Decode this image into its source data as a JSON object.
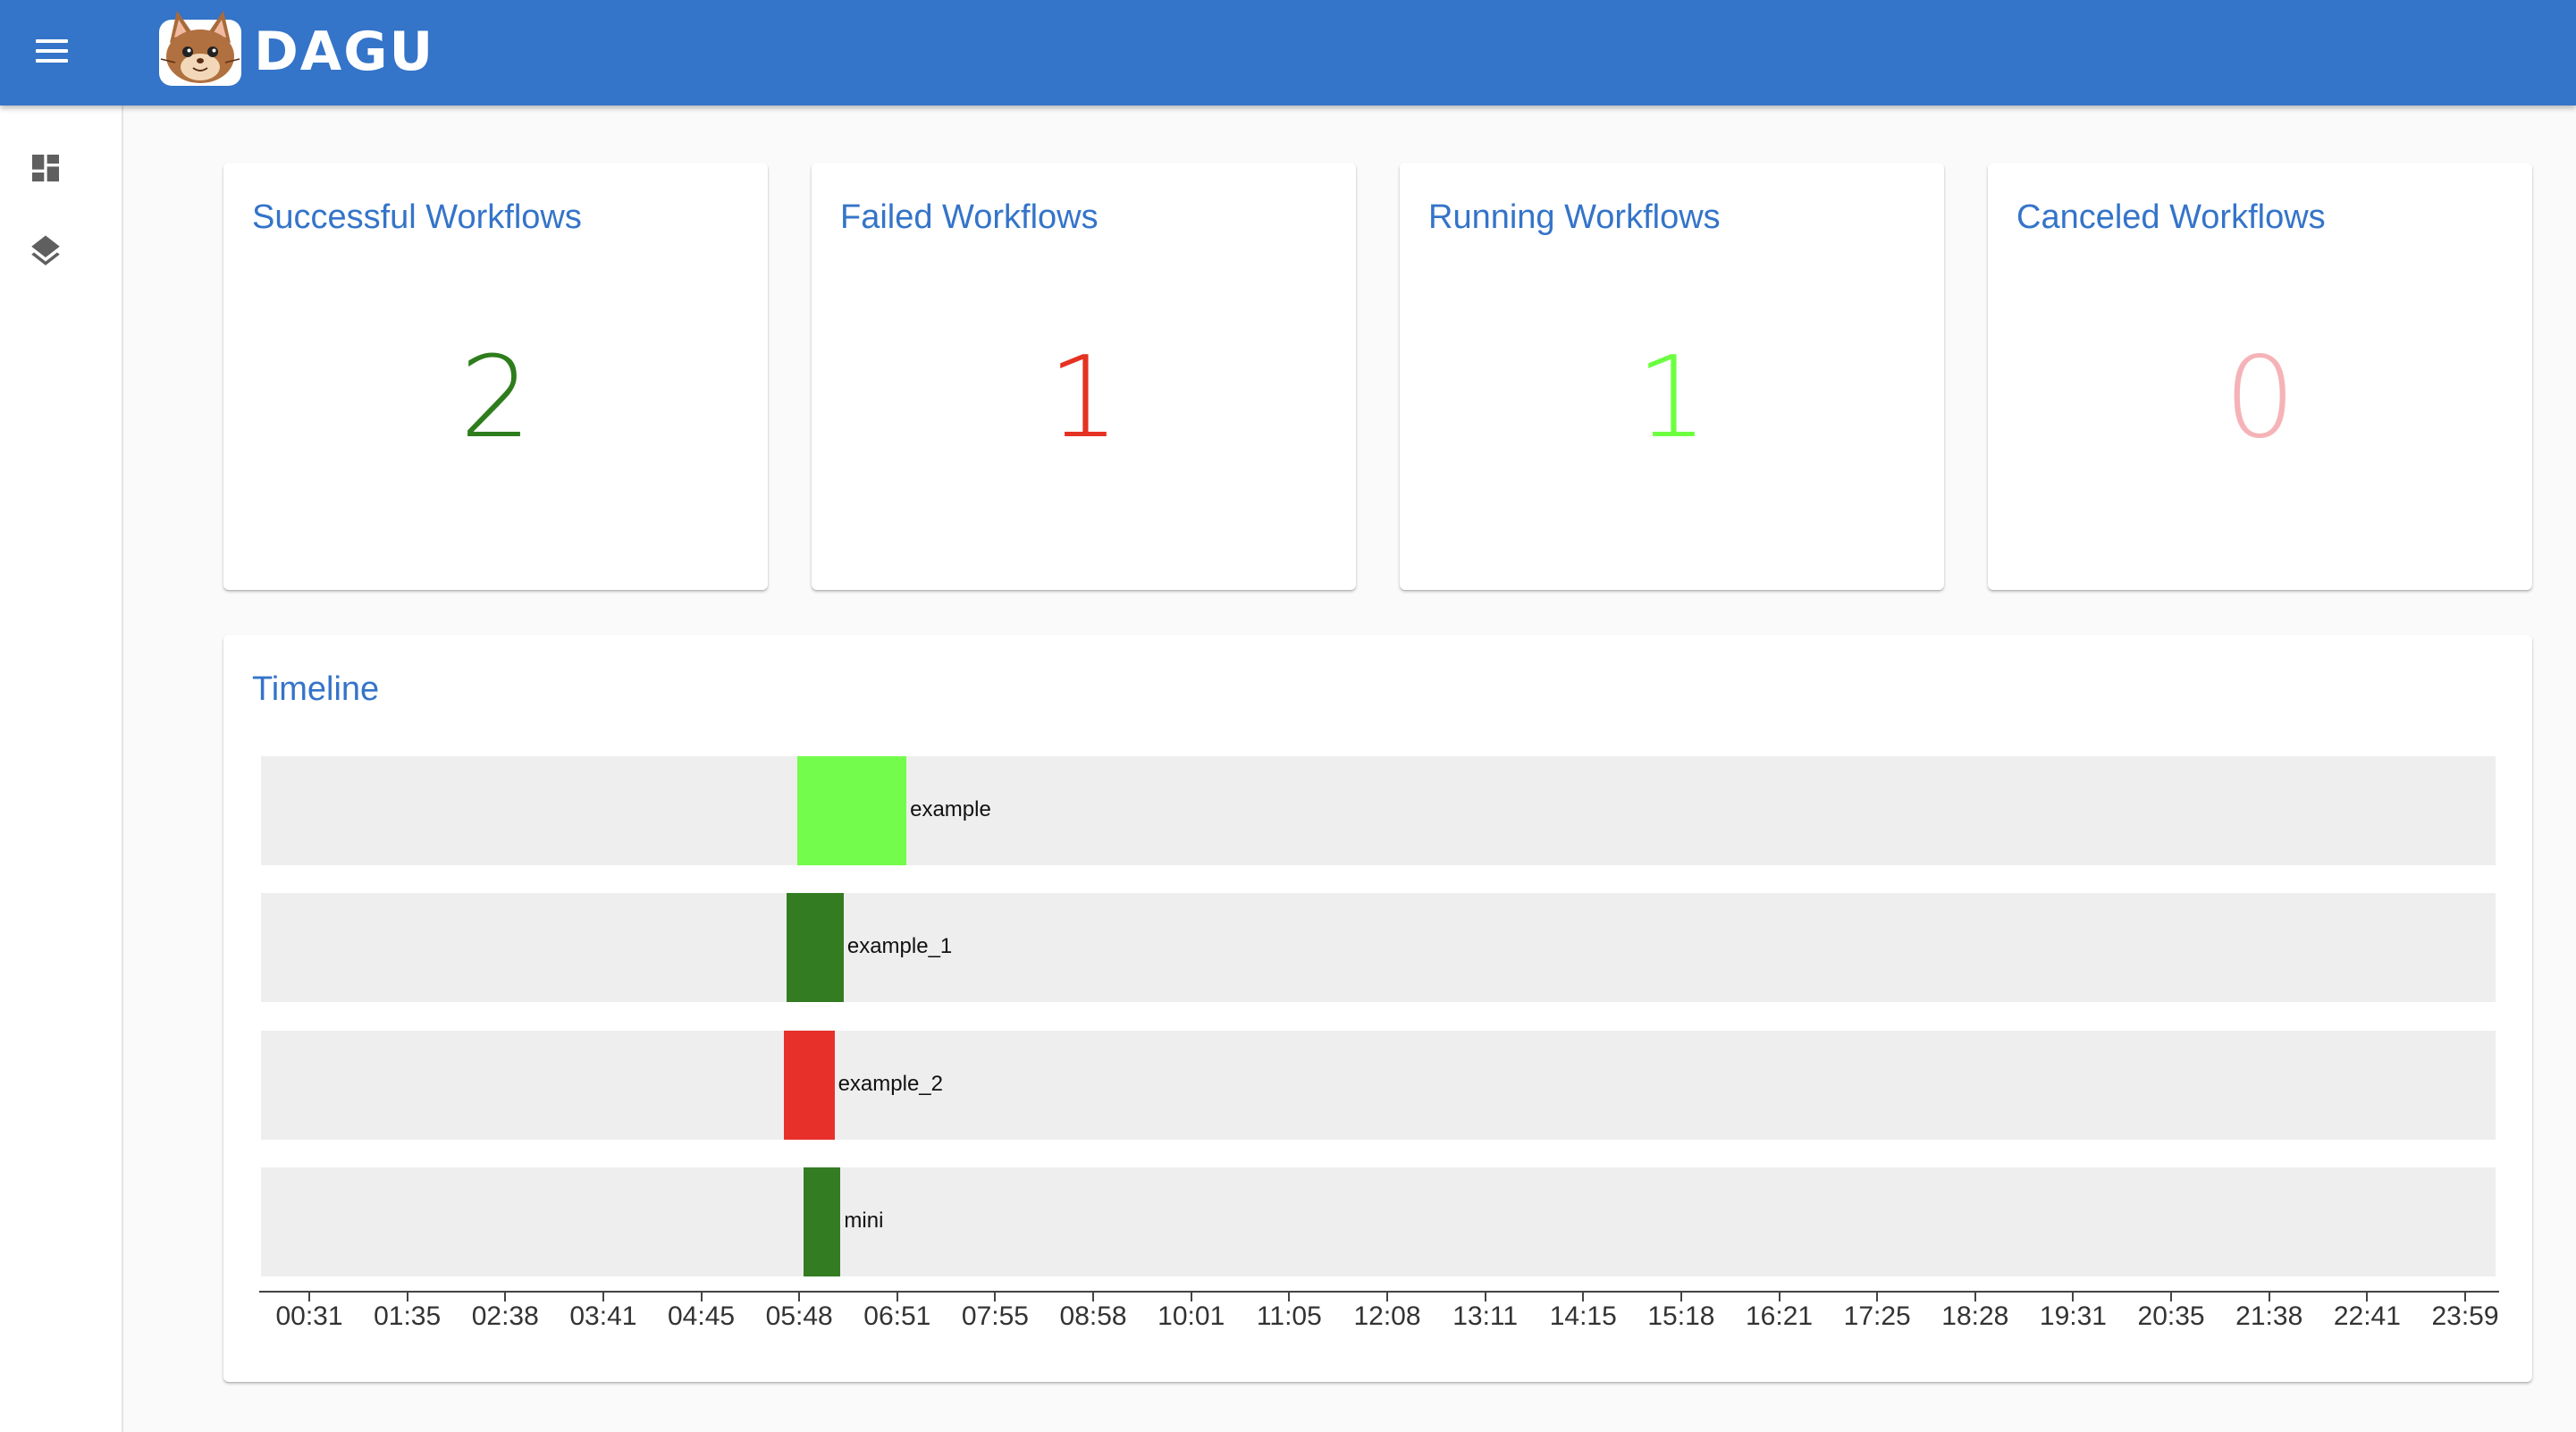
{
  "appbar": {
    "brand": "DAGU",
    "logo_icon": "dagu-cat-logo-icon",
    "menu_icon": "hamburger-menu-icon",
    "color": "#3474c9"
  },
  "sidebar": {
    "items": [
      {
        "icon": "dashboard-icon"
      },
      {
        "icon": "layers-icon"
      }
    ]
  },
  "cards": [
    {
      "title": "Successful Workflows",
      "count": "2",
      "color": "#2e7d1c"
    },
    {
      "title": "Failed Workflows",
      "count": "1",
      "color": "#e53222"
    },
    {
      "title": "Running Workflows",
      "count": "1",
      "color": "#6cff40"
    },
    {
      "title": "Canceled Workflows",
      "count": "0",
      "color": "#f5b3b8"
    }
  ],
  "timeline": {
    "title": "Timeline",
    "rows": [
      {
        "name": "example",
        "status": "running",
        "start": "05:50",
        "end": "07:01",
        "color": "#73fc4b"
      },
      {
        "name": "example_1",
        "status": "success",
        "start": "05:43",
        "end": "06:20",
        "color": "#347c22"
      },
      {
        "name": "example_2",
        "status": "failed",
        "start": "05:41",
        "end": "06:14",
        "color": "#e8302a"
      },
      {
        "name": "mini",
        "status": "success",
        "start": "05:54",
        "end": "06:18",
        "color": "#347c22"
      }
    ],
    "ticks": [
      "00:31",
      "01:35",
      "02:38",
      "03:41",
      "04:45",
      "05:48",
      "06:51",
      "07:55",
      "08:58",
      "10:01",
      "11:05",
      "12:08",
      "13:11",
      "14:15",
      "15:18",
      "16:21",
      "17:25",
      "18:28",
      "19:31",
      "20:35",
      "21:38",
      "22:41",
      "23:59"
    ]
  }
}
